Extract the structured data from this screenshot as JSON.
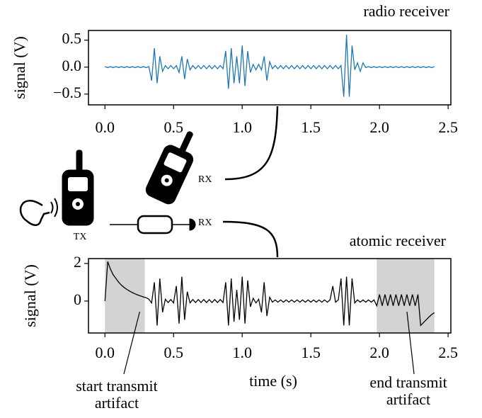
{
  "chart_data": [
    {
      "type": "line",
      "title": "radio receiver",
      "ylabel": "signal (V)",
      "xlim": [
        -0.12,
        2.52
      ],
      "ylim": [
        -0.7,
        0.68
      ],
      "xticks": [
        {
          "value": 0,
          "label": "0.0"
        },
        {
          "value": 0.5,
          "label": "0.5"
        },
        {
          "value": 1,
          "label": "1.0"
        },
        {
          "value": 1.5,
          "label": "1.5"
        },
        {
          "value": 2,
          "label": "2.0"
        },
        {
          "value": 2.5,
          "label": "2.5"
        }
      ],
      "yticks": [
        {
          "value": -0.5,
          "label": "−0.5"
        },
        {
          "value": 0,
          "label": "0.0"
        },
        {
          "value": 0.5,
          "label": "0.5"
        }
      ],
      "series": [
        {
          "color": "#1f77b4",
          "x": [
            0,
            0.02,
            0.04,
            0.06,
            0.08,
            0.1,
            0.12,
            0.14,
            0.16,
            0.18,
            0.2,
            0.22,
            0.24,
            0.26,
            0.28,
            0.3,
            0.32,
            0.34,
            0.36,
            0.38,
            0.4,
            0.42,
            0.44,
            0.46,
            0.48,
            0.5,
            0.52,
            0.54,
            0.56,
            0.58,
            0.6,
            0.62,
            0.64,
            0.66,
            0.68,
            0.7,
            0.72,
            0.74,
            0.76,
            0.78,
            0.8,
            0.82,
            0.84,
            0.86,
            0.88,
            0.9,
            0.92,
            0.94,
            0.96,
            0.98,
            1,
            1.02,
            1.04,
            1.06,
            1.08,
            1.1,
            1.12,
            1.14,
            1.16,
            1.18,
            1.2,
            1.22,
            1.24,
            1.26,
            1.28,
            1.3,
            1.32,
            1.34,
            1.36,
            1.38,
            1.4,
            1.42,
            1.44,
            1.46,
            1.48,
            1.5,
            1.52,
            1.54,
            1.56,
            1.58,
            1.6,
            1.62,
            1.64,
            1.66,
            1.68,
            1.7,
            1.72,
            1.74,
            1.76,
            1.78,
            1.8,
            1.82,
            1.84,
            1.86,
            1.88,
            1.9,
            1.92,
            1.94,
            1.96,
            1.98,
            2,
            2.02,
            2.04,
            2.06,
            2.08,
            2.1,
            2.12,
            2.14,
            2.16,
            2.18,
            2.2,
            2.22,
            2.24,
            2.26,
            2.28,
            2.3,
            2.32,
            2.34,
            2.36,
            2.38,
            2.4
          ],
          "values": [
            0.01,
            -0.01,
            0.01,
            -0.01,
            0.01,
            -0.01,
            0.01,
            -0.01,
            0.01,
            -0.01,
            0.01,
            -0.01,
            0.01,
            -0.01,
            0.01,
            -0.01,
            0.01,
            -0.25,
            0.35,
            -0.3,
            0.2,
            -0.08,
            0.03,
            -0.03,
            0.03,
            -0.03,
            0.03,
            -0.1,
            0.2,
            -0.22,
            0.15,
            -0.05,
            0.03,
            -0.03,
            0.03,
            -0.03,
            0.03,
            -0.03,
            0.03,
            -0.03,
            0.03,
            -0.03,
            0.03,
            -0.03,
            0.3,
            -0.4,
            0.35,
            -0.3,
            0.2,
            -0.3,
            0.4,
            -0.35,
            0.3,
            -0.1,
            0.05,
            -0.05,
            0.05,
            -0.05,
            0.2,
            -0.25,
            0.1,
            -0.03,
            0.03,
            -0.03,
            0.03,
            -0.03,
            0.03,
            -0.03,
            0.03,
            -0.03,
            0.03,
            -0.03,
            0.03,
            -0.03,
            0.03,
            -0.03,
            0.03,
            -0.03,
            0.03,
            -0.03,
            0.03,
            -0.03,
            0.03,
            -0.03,
            0.03,
            -0.03,
            0.03,
            -0.55,
            0.6,
            -0.55,
            0.4,
            -0.05,
            0.08,
            -0.08,
            0.08,
            -0.01,
            0.01,
            -0.01,
            0.01,
            -0.01,
            0.01,
            -0.01,
            0.01,
            -0.01,
            0.01,
            -0.01,
            0.01,
            -0.01,
            0.01,
            -0.01,
            0.01,
            -0.01,
            0.01,
            -0.01,
            0.01,
            -0.01,
            0.01,
            -0.01,
            0.01,
            -0.01,
            0.01
          ]
        }
      ]
    },
    {
      "type": "line",
      "title": "atomic receiver",
      "ylabel": "signal (V)",
      "xlabel": "time (s)",
      "xlim": [
        -0.12,
        2.52
      ],
      "ylim": [
        -1.7,
        2.26
      ],
      "xticks": [
        {
          "value": 0,
          "label": "0.0"
        },
        {
          "value": 0.5,
          "label": "0.5"
        },
        {
          "value": 1,
          "label": "1.0"
        },
        {
          "value": 1.5,
          "label": "1.5"
        },
        {
          "value": 2,
          "label": "2.0"
        },
        {
          "value": 2.5,
          "label": "2.5"
        }
      ],
      "yticks": [
        0,
        2
      ],
      "shaded_spans": [
        [
          0,
          0.29
        ],
        [
          1.98,
          2.4
        ]
      ],
      "shade_color": "#d3d3d3",
      "annotations": [
        {
          "lines": [
            "start transmit",
            "artifact"
          ],
          "x": 0.15
        },
        {
          "lines": [
            "end transmit",
            "artifact"
          ],
          "x": 2.2
        }
      ],
      "series": [
        {
          "color": "#000000",
          "x": [
            0,
            0.02,
            0.04,
            0.06,
            0.08,
            0.1,
            0.12,
            0.14,
            0.16,
            0.18,
            0.2,
            0.22,
            0.24,
            0.26,
            0.28,
            0.3,
            0.32,
            0.34,
            0.36,
            0.38,
            0.4,
            0.42,
            0.44,
            0.46,
            0.48,
            0.5,
            0.52,
            0.54,
            0.56,
            0.58,
            0.6,
            0.62,
            0.64,
            0.66,
            0.68,
            0.7,
            0.72,
            0.74,
            0.76,
            0.78,
            0.8,
            0.82,
            0.84,
            0.86,
            0.88,
            0.9,
            0.92,
            0.94,
            0.96,
            0.98,
            1,
            1.02,
            1.04,
            1.06,
            1.08,
            1.1,
            1.12,
            1.14,
            1.16,
            1.18,
            1.2,
            1.22,
            1.24,
            1.26,
            1.28,
            1.3,
            1.32,
            1.34,
            1.36,
            1.38,
            1.4,
            1.42,
            1.44,
            1.46,
            1.48,
            1.5,
            1.52,
            1.54,
            1.56,
            1.58,
            1.6,
            1.62,
            1.64,
            1.66,
            1.68,
            1.7,
            1.72,
            1.74,
            1.76,
            1.78,
            1.8,
            1.82,
            1.84,
            1.86,
            1.88,
            1.9,
            1.92,
            1.94,
            1.96,
            1.98,
            2,
            2.02,
            2.04,
            2.06,
            2.08,
            2.1,
            2.12,
            2.14,
            2.16,
            2.18,
            2.2,
            2.22,
            2.24,
            2.26,
            2.28,
            2.3,
            2.32,
            2.34,
            2.36,
            2.38,
            2.4
          ],
          "values": [
            0,
            2.1,
            1.7,
            1.4,
            1.2,
            1.0,
            0.85,
            0.72,
            0.62,
            0.53,
            0.45,
            0.38,
            0.32,
            0.27,
            0.22,
            0.18,
            0.1,
            -0.1,
            1.0,
            -1.3,
            1.2,
            -0.6,
            0.1,
            -0.08,
            0.08,
            -0.1,
            0.8,
            -1.2,
            1.3,
            -1.0,
            0.5,
            -0.1,
            0.08,
            -0.08,
            0.08,
            -0.08,
            0.08,
            -0.08,
            0.08,
            -0.08,
            0.08,
            -0.08,
            0.08,
            -0.08,
            1.0,
            -1.3,
            1.2,
            -1.1,
            0.6,
            -1.0,
            1.3,
            -1.2,
            1.1,
            -0.3,
            0.15,
            -0.1,
            0.1,
            -0.6,
            1.0,
            -0.8,
            0.2,
            -0.06,
            0.06,
            -0.06,
            0.06,
            -0.06,
            0.06,
            -0.06,
            0.06,
            -0.06,
            0.06,
            -0.06,
            0.06,
            -0.06,
            0.06,
            -0.06,
            0.06,
            -0.06,
            0.06,
            -0.06,
            0.06,
            -0.06,
            0.06,
            0.8,
            -0.06,
            0.06,
            1.2,
            -1.3,
            1.3,
            -1.3,
            1.2,
            -0.1,
            0.06,
            -0.06,
            0.06,
            -0.06,
            0.06,
            -0.06,
            0.06,
            -0.25,
            0.35,
            -0.25,
            0.35,
            -0.25,
            0.35,
            -0.25,
            0.35,
            -0.25,
            0.35,
            -0.25,
            0.35,
            -0.25,
            0.35,
            -0.25,
            0.35,
            -1.3,
            -1.15,
            -1.0,
            -0.85,
            -0.72,
            -0.62
          ]
        }
      ]
    }
  ],
  "diagram": {
    "labels": [
      "TX",
      "RX",
      "RX"
    ]
  }
}
